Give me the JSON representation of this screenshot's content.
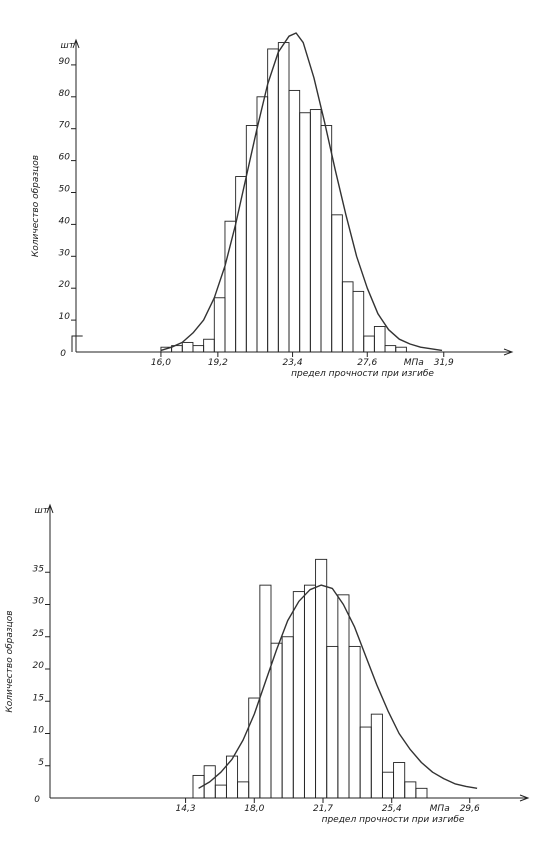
{
  "chart_data": [
    {
      "type": "bar",
      "y_unit": "шт",
      "ylabel": "Количество образцов",
      "xlabel": "предел прочности при изгибе",
      "x_unit": "МПа",
      "x_origin_label": "0",
      "x_ticks": [
        "16,0",
        "19,2",
        "23,4",
        "27,6",
        "31,9"
      ],
      "x_tick_values": [
        16.0,
        19.2,
        23.4,
        27.6,
        31.9
      ],
      "y_ticks": [
        "10",
        "20",
        "30",
        "40",
        "50",
        "60",
        "70",
        "80",
        "90"
      ],
      "y_tick_values": [
        10,
        20,
        30,
        40,
        50,
        60,
        70,
        80,
        90
      ],
      "y_origin_label": "0",
      "xlim": [
        11.0,
        34.5
      ],
      "ylim": [
        0,
        100
      ],
      "bin_width": 0.6,
      "bin_start": 16.0,
      "histogram": [
        1.5,
        2,
        3,
        2,
        4,
        17,
        41,
        55,
        71,
        80,
        95,
        97,
        82,
        75,
        76,
        71,
        43,
        22,
        19,
        5,
        8,
        2,
        1.5
      ],
      "isolated_bars": [
        {
          "x0": 11.0,
          "x1": 11.6,
          "value": 5
        }
      ],
      "curve": {
        "x": [
          16.0,
          16.6,
          17.2,
          17.8,
          18.4,
          19.0,
          19.6,
          20.2,
          20.8,
          21.4,
          22.0,
          22.6,
          23.2,
          23.6,
          24.0,
          24.6,
          25.2,
          25.8,
          26.4,
          27.0,
          27.6,
          28.2,
          28.8,
          29.4,
          30.0,
          30.6,
          31.2,
          31.8
        ],
        "y": [
          0.5,
          1.5,
          3,
          6,
          10,
          17,
          27,
          40,
          55,
          70,
          84,
          94,
          99,
          100,
          97,
          86,
          72,
          57,
          43,
          30,
          20,
          12,
          7,
          4,
          2.5,
          1.5,
          1,
          0.5
        ]
      }
    },
    {
      "type": "bar",
      "y_unit": "шт",
      "ylabel": "Количество образцов",
      "xlabel": "предел прочности при изгибе",
      "x_unit": "МПа",
      "x_origin_label": "0",
      "x_ticks": [
        "14,3",
        "18,0",
        "21,7",
        "25,4",
        "29,6"
      ],
      "x_tick_values": [
        14.3,
        18.0,
        21.7,
        25.4,
        29.6
      ],
      "y_ticks": [
        "5",
        "10",
        "15",
        "20",
        "25",
        "30",
        "35"
      ],
      "y_tick_values": [
        5,
        10,
        15,
        20,
        25,
        30,
        35
      ],
      "y_origin_label": "0",
      "xlim": [
        7.0,
        31.5
      ],
      "ylim": [
        0,
        40
      ],
      "bin_width": 0.6,
      "bin_start": 14.7,
      "histogram": [
        3.5,
        5,
        2,
        6.5,
        2.5,
        15.5,
        33,
        24,
        25,
        32,
        33,
        37,
        23.5,
        31.5,
        23.5,
        11,
        13,
        4,
        5.5,
        2.5,
        1.5
      ],
      "curve": {
        "x": [
          15.0,
          15.6,
          16.2,
          16.8,
          17.4,
          18.0,
          18.6,
          19.2,
          19.8,
          20.4,
          21.0,
          21.6,
          22.2,
          22.8,
          23.4,
          24.0,
          24.6,
          25.2,
          25.8,
          26.4,
          27.0,
          27.6,
          28.2,
          28.8,
          29.4,
          30.0
        ],
        "y": [
          1.5,
          2.5,
          4,
          6,
          9,
          13,
          18,
          23,
          27.5,
          30.5,
          32.3,
          33,
          32.5,
          30,
          26.5,
          22,
          17.5,
          13.5,
          10,
          7.5,
          5.5,
          4,
          3,
          2.2,
          1.8,
          1.5
        ]
      }
    }
  ]
}
